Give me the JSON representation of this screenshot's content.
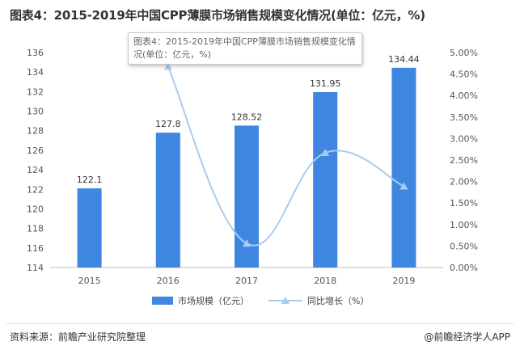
{
  "header": {
    "title": "图表4：2015-2019年中国CPP薄膜市场销售规模变化情况(单位：亿元，%)"
  },
  "tooltip": {
    "text": "图表4：2015-2019年中国CPP薄膜市场销售规模变化情况(单位：亿元，%)"
  },
  "footer": {
    "source": "资料来源：前瞻产业研究院整理",
    "brand": "@前瞻经济学人APP"
  },
  "chart_data": {
    "type": "bar",
    "title": "图表4：2015-2019年中国CPP薄膜市场销售规模变化情况(单位：亿元，%)",
    "categories": [
      "2015",
      "2016",
      "2017",
      "2018",
      "2019"
    ],
    "series": [
      {
        "name": "市场规模（亿元）",
        "type": "bar",
        "axis": "left",
        "color": "#3f86e0",
        "values": [
          122.1,
          127.8,
          128.52,
          131.95,
          134.44
        ]
      },
      {
        "name": "同比增长（%）",
        "type": "line",
        "axis": "right",
        "color": "#a9cbf0",
        "values": [
          null,
          4.67,
          0.56,
          2.67,
          1.89
        ]
      }
    ],
    "y_left": {
      "min": 114,
      "max": 136,
      "step": 2,
      "ticks": [
        "114",
        "116",
        "118",
        "120",
        "122",
        "124",
        "126",
        "128",
        "130",
        "132",
        "134",
        "136"
      ]
    },
    "y_right": {
      "min": 0,
      "max": 5,
      "step": 0.5,
      "ticks": [
        "0.00%",
        "0.50%",
        "1.00%",
        "1.50%",
        "2.00%",
        "2.50%",
        "3.00%",
        "3.50%",
        "4.00%",
        "4.50%",
        "5.00%"
      ]
    },
    "data_labels": [
      "122.1",
      "127.8",
      "128.52",
      "131.95",
      "134.44"
    ],
    "legend_position": "bottom",
    "grid": false
  }
}
